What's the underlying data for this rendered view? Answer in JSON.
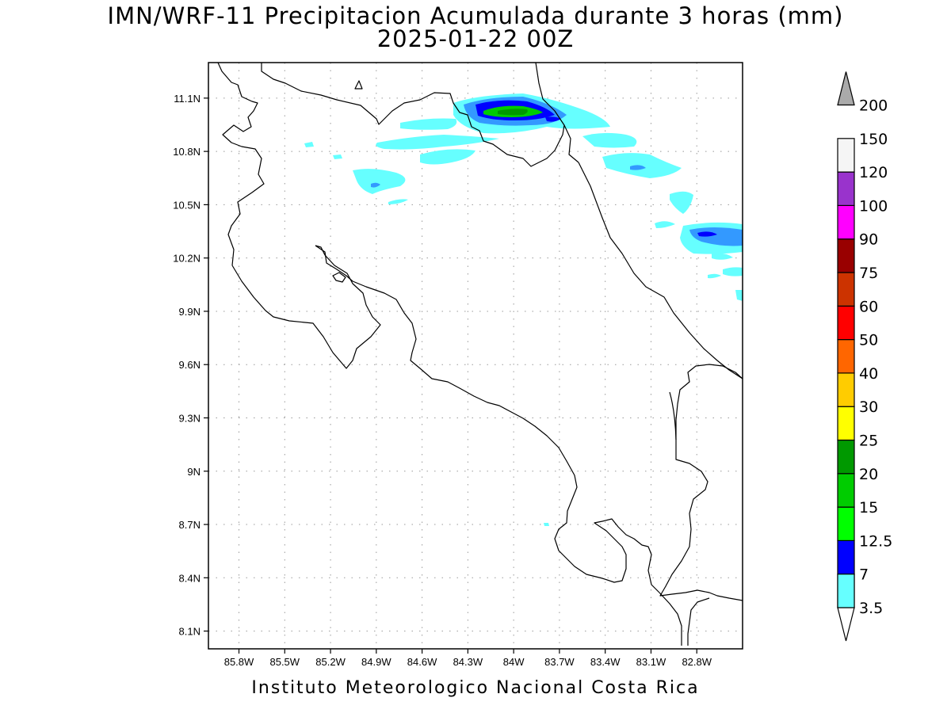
{
  "title": {
    "line1": "IMN/WRF-11 Precipitacion Acumulada durante 3 horas (mm)",
    "line2": "2025-01-22 00Z"
  },
  "footer": "Instituto Meteorologico Nacional Costa Rica",
  "map": {
    "lon_range": [
      -86.0,
      -82.5
    ],
    "lat_range": [
      8.0,
      11.3
    ],
    "lat_ticks": [
      {
        "value": 11.1,
        "label": "11.1N"
      },
      {
        "value": 10.8,
        "label": "10.8N"
      },
      {
        "value": 10.5,
        "label": "10.5N"
      },
      {
        "value": 10.2,
        "label": "10.2N"
      },
      {
        "value": 9.9,
        "label": "9.9N"
      },
      {
        "value": 9.6,
        "label": "9.6N"
      },
      {
        "value": 9.3,
        "label": "9.3N"
      },
      {
        "value": 9.0,
        "label": "9N"
      },
      {
        "value": 8.7,
        "label": "8.7N"
      },
      {
        "value": 8.4,
        "label": "8.4N"
      },
      {
        "value": 8.1,
        "label": "8.1N"
      }
    ],
    "lon_ticks": [
      {
        "value": -85.8,
        "label": "85.8W"
      },
      {
        "value": -85.5,
        "label": "85.5W"
      },
      {
        "value": -85.2,
        "label": "85.2W"
      },
      {
        "value": -84.9,
        "label": "84.9W"
      },
      {
        "value": -84.6,
        "label": "84.6W"
      },
      {
        "value": -84.3,
        "label": "84.3W"
      },
      {
        "value": -84.0,
        "label": "84W"
      },
      {
        "value": -83.7,
        "label": "83.7W"
      },
      {
        "value": -83.4,
        "label": "83.4W"
      },
      {
        "value": -83.1,
        "label": "83.1W"
      },
      {
        "value": -82.8,
        "label": "82.8W"
      }
    ],
    "gridlines": "dotted",
    "coastline_color": "#000000"
  },
  "legend": {
    "placement": "right",
    "bins": [
      {
        "label": "3.5",
        "color": "#66ffff"
      },
      {
        "label": "7",
        "color": "#3399ff"
      },
      {
        "label": "12.5",
        "color": "#0000ff"
      },
      {
        "label": "15",
        "color": "#00ff00"
      },
      {
        "label": "20",
        "color": "#00cc00"
      },
      {
        "label": "25",
        "color": "#009900"
      },
      {
        "label": "30",
        "color": "#ffff00"
      },
      {
        "label": "40",
        "color": "#ffcc00"
      },
      {
        "label": "50",
        "color": "#ff6600"
      },
      {
        "label": "60",
        "color": "#ff0000"
      },
      {
        "label": "75",
        "color": "#cc3300"
      },
      {
        "label": "90",
        "color": "#990000"
      },
      {
        "label": "100",
        "color": "#ff00ff"
      },
      {
        "label": "120",
        "color": "#9933cc"
      },
      {
        "label": "150",
        "color": "#f5f5f5"
      },
      {
        "label": "200",
        "color": "#aaaaaa"
      }
    ]
  },
  "precip_colors": {
    "light": "#66ffff",
    "moderate": "#3399ff",
    "heavy": "#0000ff",
    "intense": "#00cc00",
    "peak": "#009900"
  }
}
